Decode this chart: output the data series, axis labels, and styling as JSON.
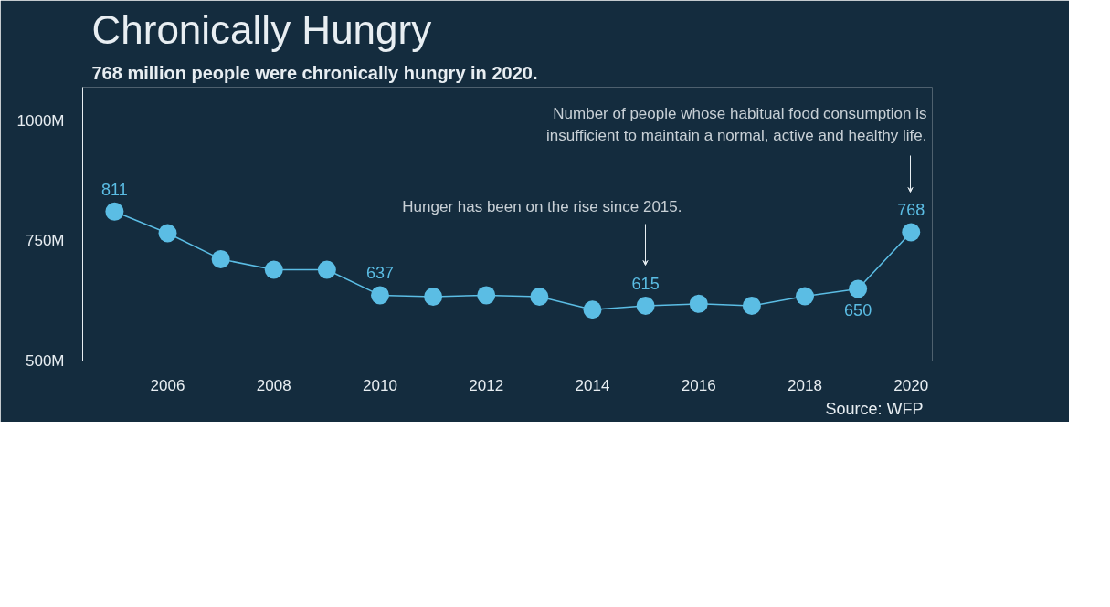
{
  "chart_data": {
    "type": "line",
    "title": "Chronically Hungry",
    "subtitle": "768 million people were chronically hungry in 2020.",
    "x": [
      2005,
      2006,
      2007,
      2008,
      2009,
      2010,
      2011,
      2012,
      2013,
      2014,
      2015,
      2016,
      2017,
      2018,
      2019,
      2020
    ],
    "series": [
      {
        "color": "#5bbde4",
        "values": [
          811,
          766,
          712,
          690,
          690,
          637,
          634,
          637,
          634,
          607,
          615,
          619,
          615,
          635,
          650,
          768
        ],
        "value_labels": [
          "811",
          null,
          null,
          null,
          null,
          "637",
          null,
          null,
          null,
          null,
          "615",
          null,
          null,
          null,
          "650",
          "768"
        ]
      }
    ],
    "xlim": [
      2004.4,
      2020.4
    ],
    "xticks": [
      2006,
      2008,
      2010,
      2012,
      2014,
      2016,
      2018,
      2020
    ],
    "ylim": [
      500,
      1070
    ],
    "yticks": [
      {
        "value": 500,
        "label": "500M"
      },
      {
        "value": 750,
        "label": "750M"
      },
      {
        "value": 1000,
        "label": "1000M"
      }
    ],
    "marker": "circle",
    "grid": false,
    "annotations": [
      "Hunger has been on the rise since 2015.",
      "Number of people whose habitual food consumption is\ninsufficient to maintain a normal, active and healthy life.",
      "Source: WFP"
    ]
  }
}
